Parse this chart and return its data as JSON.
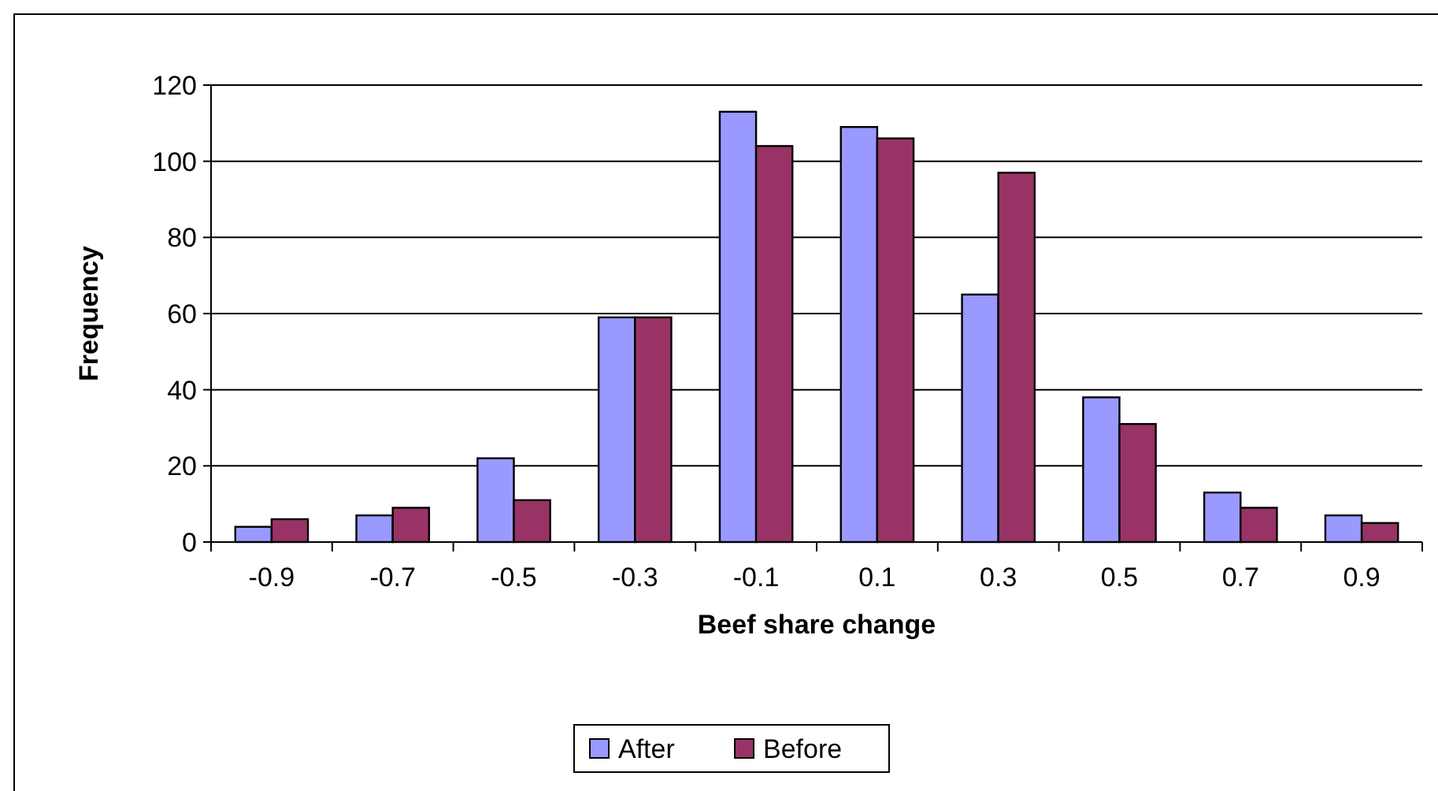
{
  "chart_data": {
    "type": "bar",
    "xlabel": "Beef share change",
    "ylabel": "Frequency",
    "categories": [
      "-0.9",
      "-0.7",
      "-0.5",
      "-0.3",
      "-0.1",
      "0.1",
      "0.3",
      "0.5",
      "0.7",
      "0.9"
    ],
    "series": [
      {
        "name": "After",
        "color": "#9999ff",
        "values": [
          4,
          7,
          22,
          59,
          113,
          109,
          65,
          38,
          13,
          7
        ]
      },
      {
        "name": "Before",
        "color": "#993366",
        "values": [
          6,
          9,
          11,
          59,
          104,
          106,
          97,
          31,
          9,
          5
        ]
      }
    ],
    "ylim": [
      0,
      120
    ],
    "yticks": [
      0,
      20,
      40,
      60,
      80,
      100,
      120
    ],
    "grid": "y",
    "legend": "bottom"
  }
}
